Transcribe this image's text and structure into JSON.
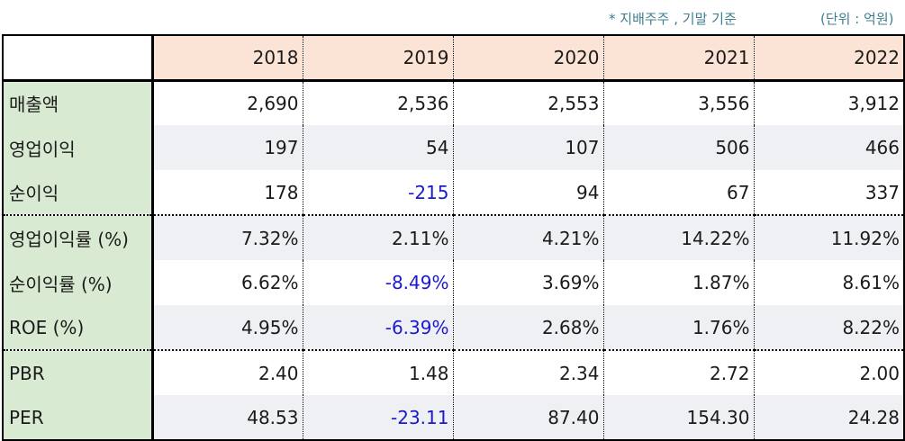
{
  "notes": {
    "basis": "* 지배주주 , 기말 기준",
    "unit": "(단위 : 억원)"
  },
  "header": {
    "corner": "",
    "years": [
      "2018",
      "2019",
      "2020",
      "2021",
      "2022"
    ]
  },
  "rows": [
    {
      "label": "매출액",
      "values": [
        "2,690",
        "2,536",
        "2,553",
        "3,556",
        "3,912"
      ]
    },
    {
      "label": "영업이익",
      "values": [
        "197",
        "54",
        "107",
        "506",
        "466"
      ]
    },
    {
      "label": "순이익",
      "values": [
        "178",
        "-215",
        "94",
        "67",
        "337"
      ]
    },
    {
      "label": "영업이익률 (%)",
      "values": [
        "7.32%",
        "2.11%",
        "4.21%",
        "14.22%",
        "11.92%"
      ]
    },
    {
      "label": "순이익률 (%)",
      "values": [
        "6.62%",
        "-8.49%",
        "3.69%",
        "1.87%",
        "8.61%"
      ]
    },
    {
      "label": "ROE (%)",
      "values": [
        "4.95%",
        "-6.39%",
        "2.68%",
        "1.76%",
        "8.22%"
      ]
    },
    {
      "label": "PBR",
      "values": [
        "2.40",
        "1.48",
        "2.34",
        "2.72",
        "2.00"
      ]
    },
    {
      "label": "PER",
      "values": [
        "48.53",
        "-23.11",
        "87.40",
        "154.30",
        "24.28"
      ]
    }
  ],
  "colors": {
    "header_bg": "#fbe4d5",
    "label_bg": "#d9ead3",
    "stripe_bg": "#eef0f4",
    "negative_text": "#1a1acc",
    "note_text": "#3d7f8f"
  }
}
